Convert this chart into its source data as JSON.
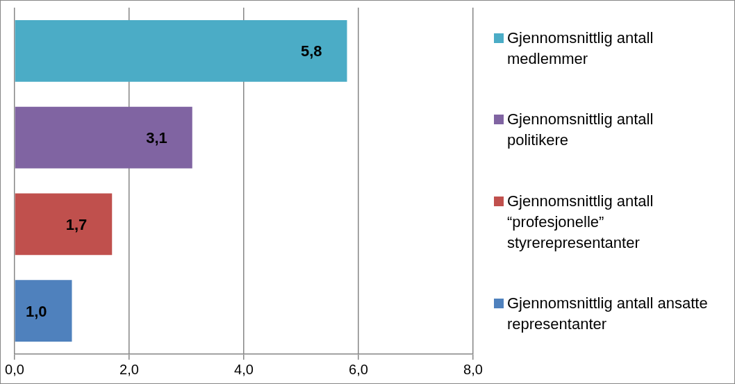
{
  "chart_data": {
    "type": "bar",
    "orientation": "horizontal",
    "categories": [
      null
    ],
    "series": [
      {
        "name": "Gjennomsnittlig antall medlemmer",
        "color": "#4bacc6",
        "values": [
          5.8
        ],
        "value_labels": [
          "5,8"
        ]
      },
      {
        "name": "Gjennomsnittlig antall politikere",
        "color": "#8064a2",
        "values": [
          3.1
        ],
        "value_labels": [
          "3,1"
        ]
      },
      {
        "name": "Gjennomsnittlig antall “profesjonelle” styrerepresentanter",
        "color": "#c0504d",
        "values": [
          1.7
        ],
        "value_labels": [
          "1,7"
        ]
      },
      {
        "name": "Gjennomsnittlig antall ansatte representanter",
        "color": "#4f81bd",
        "values": [
          1.0
        ],
        "value_labels": [
          "1,0"
        ]
      }
    ],
    "xlim": [
      0,
      8
    ],
    "xticks": [
      {
        "value": 0,
        "label": "0,0"
      },
      {
        "value": 2,
        "label": "2,0"
      },
      {
        "value": 4,
        "label": "4,0"
      },
      {
        "value": 6,
        "label": "6,0"
      },
      {
        "value": 8,
        "label": "8,0"
      }
    ],
    "grid": "x",
    "legend": "right"
  }
}
